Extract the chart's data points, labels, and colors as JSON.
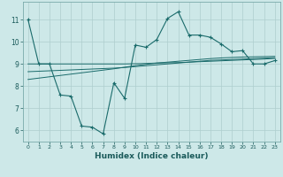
{
  "title": "",
  "xlabel": "Humidex (Indice chaleur)",
  "bg_color": "#cde8e8",
  "line_color": "#1a6b6b",
  "grid_color": "#aecece",
  "xlim": [
    -0.5,
    23.5
  ],
  "ylim": [
    5.5,
    11.8
  ],
  "xticks": [
    0,
    1,
    2,
    3,
    4,
    5,
    6,
    7,
    8,
    9,
    10,
    11,
    12,
    13,
    14,
    15,
    16,
    17,
    18,
    19,
    20,
    21,
    22,
    23
  ],
  "yticks": [
    6,
    7,
    8,
    9,
    10,
    11
  ],
  "main_x": [
    0,
    1,
    2,
    3,
    4,
    5,
    6,
    7,
    8,
    9,
    10,
    11,
    12,
    13,
    14,
    15,
    16,
    17,
    18,
    19,
    20,
    21,
    22,
    23
  ],
  "main_y": [
    11.0,
    9.0,
    9.0,
    7.6,
    7.55,
    6.2,
    6.15,
    5.85,
    8.15,
    7.45,
    9.85,
    9.75,
    10.1,
    11.05,
    11.35,
    10.3,
    10.3,
    10.2,
    9.9,
    9.55,
    9.6,
    9.0,
    9.0,
    9.15
  ],
  "line2_x": [
    0,
    1,
    2,
    3,
    4,
    5,
    6,
    7,
    8,
    9,
    10,
    11,
    12,
    13,
    14,
    15,
    16,
    17,
    18,
    19,
    20,
    21,
    22,
    23
  ],
  "line2_y": [
    9.0,
    9.0,
    9.0,
    9.0,
    9.0,
    9.0,
    9.0,
    9.0,
    9.0,
    9.0,
    9.01,
    9.02,
    9.04,
    9.05,
    9.06,
    9.08,
    9.1,
    9.12,
    9.14,
    9.16,
    9.18,
    9.2,
    9.22,
    9.25
  ],
  "line3_x": [
    0,
    1,
    2,
    3,
    4,
    5,
    6,
    7,
    8,
    9,
    10,
    11,
    12,
    13,
    14,
    15,
    16,
    17,
    18,
    19,
    20,
    21,
    22,
    23
  ],
  "line3_y": [
    8.65,
    8.67,
    8.69,
    8.71,
    8.73,
    8.75,
    8.77,
    8.79,
    8.81,
    8.84,
    8.88,
    8.92,
    8.96,
    9.0,
    9.04,
    9.08,
    9.12,
    9.16,
    9.18,
    9.2,
    9.22,
    9.24,
    9.26,
    9.28
  ],
  "line4_x": [
    0,
    1,
    2,
    3,
    4,
    5,
    6,
    7,
    8,
    9,
    10,
    11,
    12,
    13,
    14,
    15,
    16,
    17,
    18,
    19,
    20,
    21,
    22,
    23
  ],
  "line4_y": [
    8.3,
    8.36,
    8.42,
    8.48,
    8.54,
    8.6,
    8.66,
    8.72,
    8.78,
    8.85,
    8.92,
    8.98,
    9.04,
    9.08,
    9.12,
    9.16,
    9.2,
    9.24,
    9.27,
    9.29,
    9.31,
    9.32,
    9.33,
    9.34
  ]
}
